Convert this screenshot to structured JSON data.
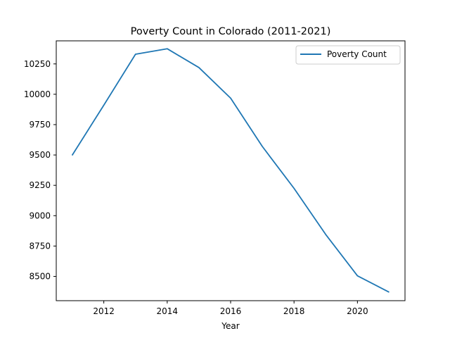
{
  "chart_data": {
    "type": "line",
    "title": "Poverty Count in Colorado (2011-2021)",
    "xlabel": "Year",
    "ylabel": "",
    "x": [
      2011,
      2012,
      2013,
      2014,
      2015,
      2016,
      2017,
      2018,
      2019,
      2020,
      2021
    ],
    "series": [
      {
        "name": "Poverty Count",
        "color": "#1f77b4",
        "values": [
          9497,
          9910,
          10330,
          10375,
          10220,
          9968,
          9570,
          9225,
          8845,
          8505,
          8370
        ]
      }
    ],
    "xlim": [
      2010.5,
      2021.5
    ],
    "ylim": [
      8300,
      10440
    ],
    "xticks": [
      2012,
      2014,
      2016,
      2018,
      2020
    ],
    "yticks": [
      8500,
      8750,
      9000,
      9250,
      9500,
      9750,
      10000,
      10250
    ],
    "grid": false,
    "legend_position": "top-right"
  }
}
